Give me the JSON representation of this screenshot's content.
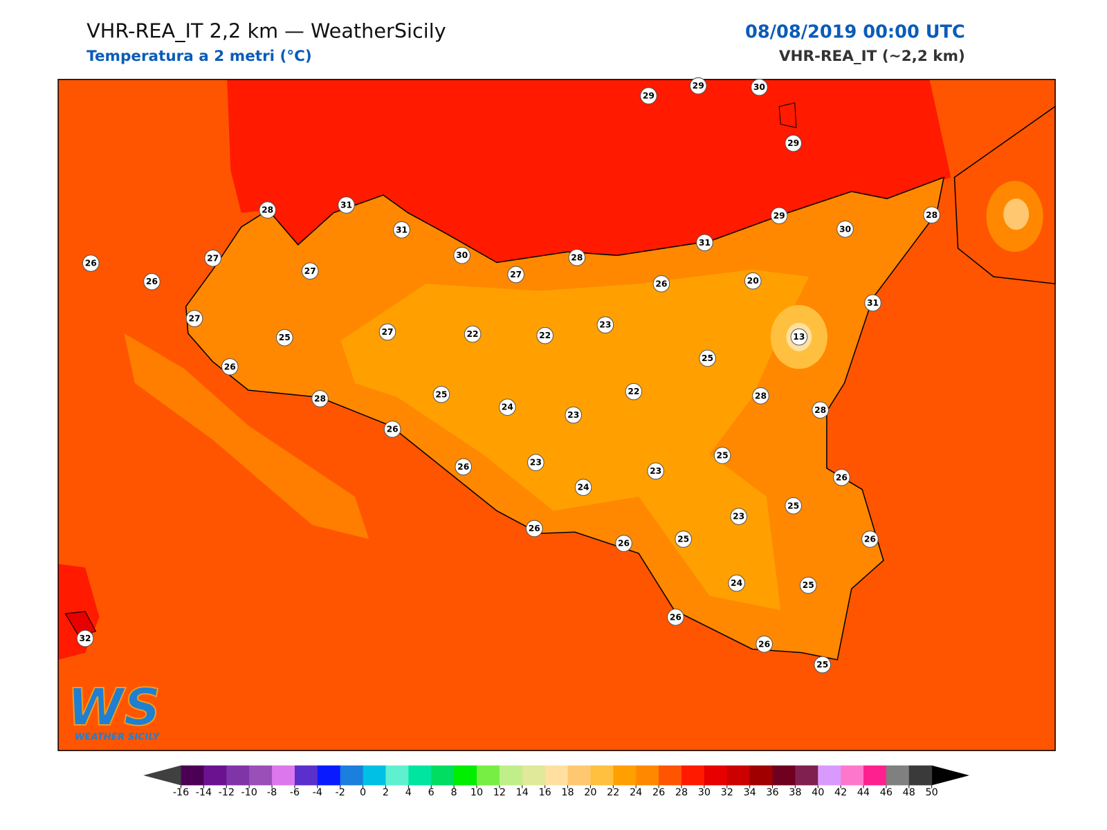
{
  "header": {
    "title": "VHR-REA_IT 2,2 km — WeatherSicily",
    "subtitle": "Temperatura a 2 metri (°C)",
    "datetime": "08/08/2019 00:00 UTC",
    "model": "VHR-REA_IT (~2,2 km)"
  },
  "map": {
    "stations": [
      29,
      29,
      30,
      29,
      28,
      31,
      31,
      30,
      27,
      28,
      31,
      29,
      30,
      28,
      26,
      27,
      26,
      27,
      26,
      20,
      31,
      27,
      25,
      27,
      22,
      22,
      23,
      13,
      25,
      26,
      28,
      25,
      24,
      23,
      22,
      28,
      28,
      26,
      25,
      26,
      23,
      23,
      24,
      26,
      25,
      23,
      26,
      26,
      25,
      26,
      24,
      25,
      26,
      32,
      26,
      25
    ]
  },
  "logo": {
    "mark": "WS",
    "name": "WEATHER SICILY"
  },
  "colorbar": {
    "ticks": [
      -16,
      -14,
      -12,
      -10,
      -8,
      -6,
      -4,
      -2,
      0,
      2,
      4,
      6,
      8,
      10,
      12,
      14,
      16,
      18,
      20,
      22,
      24,
      26,
      28,
      30,
      32,
      34,
      36,
      38,
      40,
      42,
      44,
      46,
      48,
      50
    ],
    "colors": [
      "#4b0055",
      "#6a1290",
      "#7f35a8",
      "#9a4fb8",
      "#dd77ee",
      "#5a2fcc",
      "#0a1aff",
      "#1a7fdd",
      "#00c0e6",
      "#5ff0d0",
      "#00e6a0",
      "#00dd60",
      "#00ee00",
      "#77ee44",
      "#c0ee88",
      "#e0e89a",
      "#ffe0a0",
      "#ffc870",
      "#ffc040",
      "#ffa000",
      "#ff8800",
      "#ff5500",
      "#ff1a00",
      "#e60000",
      "#cc0000",
      "#a00000",
      "#700020",
      "#7f2050",
      "#d99aff",
      "#ff77cc",
      "#ff2090",
      "#808080",
      "#3a3a3a"
    ],
    "under_color": "#404040",
    "over_color": "#000000"
  }
}
